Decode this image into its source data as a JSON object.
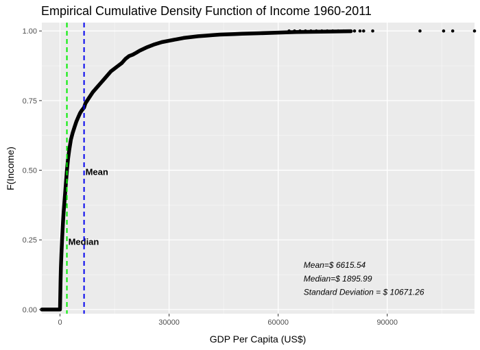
{
  "chart_data": {
    "type": "line",
    "title": "Empirical Cumulative Density Function of Income 1960-2011",
    "xlabel": "GDP Per Capita (US$)",
    "ylabel": "F(Income)",
    "xlim": [
      -5000,
      114000
    ],
    "ylim": [
      -0.015,
      1.03
    ],
    "x_ticks": [
      0,
      30000,
      60000,
      90000
    ],
    "x_tick_labels": [
      "0",
      "30000",
      "60000",
      "90000"
    ],
    "y_ticks": [
      0,
      0.25,
      0.5,
      0.75,
      1.0
    ],
    "y_tick_labels": [
      "0.00",
      "0.25",
      "0.50",
      "0.75",
      "1.00"
    ],
    "grid": true,
    "ecdf_curve": {
      "x": [
        -5000,
        0,
        80,
        150,
        250,
        400,
        600,
        800,
        1000,
        1300,
        1600,
        1896,
        2200,
        2500,
        3000,
        3500,
        4000,
        4500,
        5000,
        5500,
        6000,
        6616,
        7000,
        8000,
        9000,
        10000,
        11000,
        12000,
        13000,
        14000,
        15000,
        16000,
        17000,
        18000,
        19000,
        20000,
        21000,
        22000,
        24000,
        26000,
        28000,
        30000,
        32000,
        34000,
        36000,
        38000,
        40000,
        42000,
        44000,
        46000,
        48000,
        50000,
        55000,
        60000,
        65000,
        70000,
        75000,
        80000
      ],
      "y": [
        0.0,
        0.0,
        0.05,
        0.1,
        0.15,
        0.2,
        0.26,
        0.31,
        0.35,
        0.4,
        0.45,
        0.5,
        0.54,
        0.57,
        0.61,
        0.635,
        0.655,
        0.675,
        0.69,
        0.705,
        0.715,
        0.725,
        0.74,
        0.76,
        0.78,
        0.795,
        0.81,
        0.825,
        0.84,
        0.855,
        0.865,
        0.875,
        0.885,
        0.9,
        0.91,
        0.915,
        0.922,
        0.93,
        0.942,
        0.952,
        0.96,
        0.965,
        0.97,
        0.975,
        0.978,
        0.981,
        0.983,
        0.985,
        0.987,
        0.988,
        0.989,
        0.99,
        0.992,
        0.994,
        0.996,
        0.997,
        0.998,
        0.999
      ]
    },
    "outlier_points": {
      "x": [
        -5000,
        63000,
        64500,
        66000,
        67500,
        69000,
        70500,
        72000,
        73500,
        75000,
        76500,
        78000,
        80000,
        81000,
        82500,
        83500,
        86000,
        99000,
        105500,
        108000,
        114000
      ],
      "y": [
        0.0,
        1.0,
        1.0,
        1.0,
        1.0,
        1.0,
        1.0,
        1.0,
        1.0,
        1.0,
        1.0,
        1.0,
        1.0,
        1.0,
        1.0,
        1.0,
        1.0,
        1.0,
        1.0,
        1.0,
        1.0
      ]
    },
    "vlines": [
      {
        "label": "Median",
        "x": 1895.99,
        "color": "#00ee00",
        "label_y": 0.245
      },
      {
        "label": "Mean",
        "x": 6615.54,
        "color": "#0000ee",
        "label_y": 0.495
      }
    ],
    "annotations": [
      {
        "text": "Mean=$ 6615.54",
        "x": 67000,
        "y": 0.16
      },
      {
        "text": "Median=$ 1895.99",
        "x": 67000,
        "y": 0.11
      },
      {
        "text": "Standard Deviation = $ 10671.26",
        "x": 67000,
        "y": 0.062
      }
    ],
    "colors": {
      "panel": "#ebebeb",
      "grid_major": "#ffffff",
      "grid_minor": "#f5f5f5",
      "curve": "#000000"
    }
  }
}
